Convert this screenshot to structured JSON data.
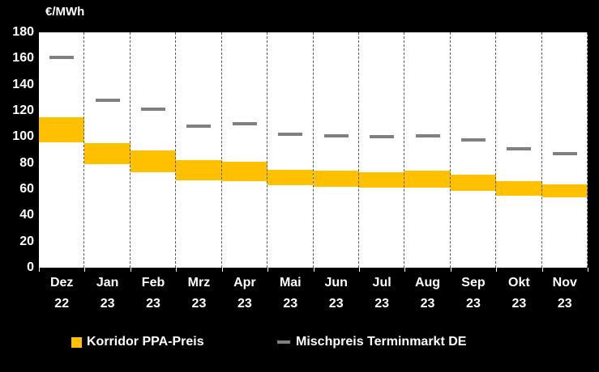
{
  "legend": {
    "items": [
      {
        "label": "Korridor PPA-Preis",
        "marker": "square",
        "color": "#FFC000"
      },
      {
        "label": "Mischpreis Terminmarkt DE",
        "marker": "dash",
        "color": "#808080"
      }
    ]
  },
  "chart_data": {
    "type": "bar",
    "subtype": "floating-range-bars-with-dash-markers",
    "title": "",
    "ylabel": "€/MWh",
    "xlabel": "",
    "ylim": [
      0,
      180
    ],
    "ytick_step": 20,
    "grid": "vertical-dashed",
    "legend_position": "bottom",
    "categories": [
      {
        "month": "Dez",
        "year": "22"
      },
      {
        "month": "Jan",
        "year": "23"
      },
      {
        "month": "Feb",
        "year": "23"
      },
      {
        "month": "Mrz",
        "year": "23"
      },
      {
        "month": "Apr",
        "year": "23"
      },
      {
        "month": "Mai",
        "year": "23"
      },
      {
        "month": "Jun",
        "year": "23"
      },
      {
        "month": "Jul",
        "year": "23"
      },
      {
        "month": "Aug",
        "year": "23"
      },
      {
        "month": "Sep",
        "year": "23"
      },
      {
        "month": "Okt",
        "year": "23"
      },
      {
        "month": "Nov",
        "year": "23"
      }
    ],
    "series": [
      {
        "name": "Korridor PPA-Preis",
        "type": "range-bar",
        "color": "#FFC000",
        "low": [
          96,
          79,
          73,
          67,
          66,
          63,
          62,
          61,
          61,
          59,
          55,
          54
        ],
        "high": [
          115,
          95,
          90,
          82,
          81,
          75,
          74,
          73,
          74,
          71,
          66,
          64
        ]
      },
      {
        "name": "Mischpreis Terminmarkt DE",
        "type": "dash-marker",
        "color": "#808080",
        "values": [
          161,
          128,
          121,
          108,
          110,
          102,
          101,
          100,
          101,
          98,
          91,
          87
        ]
      }
    ],
    "colors": {
      "background": "#000000",
      "plot_background": "#FFFFFF",
      "text": "#FFFFFF",
      "gridline": "#595959"
    }
  }
}
